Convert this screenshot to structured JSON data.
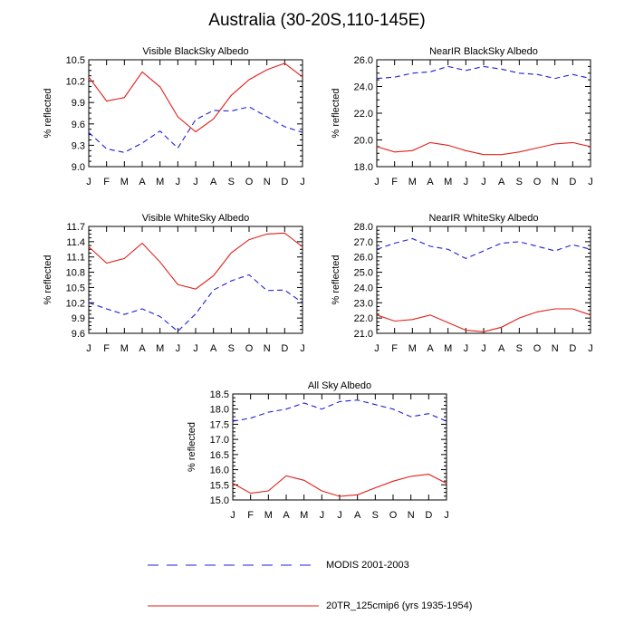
{
  "title": "Australia (30-20S,110-145E)",
  "colors": {
    "modis": "#1f1fd6",
    "model": "#e0201b"
  },
  "legend": [
    {
      "label": "MODIS 2001-2003",
      "style": "dashed",
      "color": "#1f1fd6"
    },
    {
      "label": "20TR_125cmip6 (yrs 1935-1954)",
      "style": "solid",
      "color": "#e0201b"
    }
  ],
  "chart_data": [
    {
      "type": "line",
      "title": "Visible BlackSky Albedo",
      "ylabel": "% reflected",
      "categories": [
        "J",
        "F",
        "M",
        "A",
        "M",
        "J",
        "J",
        "A",
        "S",
        "O",
        "N",
        "D",
        "J"
      ],
      "ylim": [
        9.0,
        10.5
      ],
      "yticks": [
        "9.0",
        "9.3",
        "9.6",
        "9.9",
        "10.2",
        "10.5"
      ],
      "series": [
        {
          "name": "MODIS 2001-2003",
          "style": "dashed",
          "values": [
            9.48,
            9.25,
            9.2,
            9.33,
            9.5,
            9.26,
            9.66,
            9.79,
            9.78,
            9.84,
            9.7,
            9.56,
            9.48
          ]
        },
        {
          "name": "20TR_125cmip6 (yrs 1935-1954)",
          "style": "solid",
          "values": [
            10.26,
            9.92,
            9.97,
            10.33,
            10.12,
            9.7,
            9.49,
            9.67,
            10.0,
            10.22,
            10.36,
            10.45,
            10.26
          ]
        }
      ]
    },
    {
      "type": "line",
      "title": "NearIR BlackSky Albedo",
      "ylabel": "% reflected",
      "categories": [
        "J",
        "F",
        "M",
        "A",
        "M",
        "J",
        "J",
        "A",
        "S",
        "O",
        "N",
        "D",
        "J"
      ],
      "ylim": [
        18.0,
        26.0
      ],
      "yticks": [
        "18.0",
        "20.0",
        "22.0",
        "24.0",
        "26.0"
      ],
      "series": [
        {
          "name": "MODIS 2001-2003",
          "style": "dashed",
          "values": [
            24.6,
            24.7,
            25.0,
            25.1,
            25.5,
            25.2,
            25.5,
            25.3,
            25.0,
            24.9,
            24.6,
            24.9,
            24.6
          ]
        },
        {
          "name": "20TR_125cmip6 (yrs 1935-1954)",
          "style": "solid",
          "values": [
            19.5,
            19.1,
            19.2,
            19.8,
            19.6,
            19.2,
            18.9,
            18.9,
            19.1,
            19.4,
            19.7,
            19.8,
            19.5
          ]
        }
      ]
    },
    {
      "type": "line",
      "title": "Visible WhiteSky Albedo",
      "ylabel": "% reflected",
      "categories": [
        "J",
        "F",
        "M",
        "A",
        "M",
        "J",
        "J",
        "A",
        "S",
        "O",
        "N",
        "D",
        "J"
      ],
      "ylim": [
        9.6,
        11.7
      ],
      "yticks": [
        "9.6",
        "9.9",
        "10.2",
        "10.5",
        "10.8",
        "11.1",
        "11.4",
        "11.7"
      ],
      "series": [
        {
          "name": "MODIS 2001-2003",
          "style": "dashed",
          "values": [
            10.2,
            10.08,
            9.97,
            10.08,
            9.93,
            9.64,
            9.98,
            10.45,
            10.63,
            10.75,
            10.44,
            10.45,
            10.2
          ]
        },
        {
          "name": "20TR_125cmip6 (yrs 1935-1954)",
          "style": "solid",
          "values": [
            11.3,
            10.98,
            11.07,
            11.37,
            11.0,
            10.56,
            10.47,
            10.73,
            11.18,
            11.44,
            11.55,
            11.57,
            11.3
          ]
        }
      ]
    },
    {
      "type": "line",
      "title": "NearIR WhiteSky Albedo",
      "ylabel": "% reflected",
      "categories": [
        "J",
        "F",
        "M",
        "A",
        "M",
        "J",
        "J",
        "A",
        "S",
        "O",
        "N",
        "D",
        "J"
      ],
      "ylim": [
        21.0,
        28.0
      ],
      "yticks": [
        "21.0",
        "22.0",
        "23.0",
        "24.0",
        "25.0",
        "26.0",
        "27.0",
        "28.0"
      ],
      "series": [
        {
          "name": "MODIS 2001-2003",
          "style": "dashed",
          "values": [
            26.5,
            26.9,
            27.2,
            26.7,
            26.5,
            25.9,
            26.4,
            26.9,
            27.0,
            26.7,
            26.4,
            26.8,
            26.5
          ]
        },
        {
          "name": "20TR_125cmip6 (yrs 1935-1954)",
          "style": "solid",
          "values": [
            22.2,
            21.8,
            21.9,
            22.2,
            21.7,
            21.2,
            21.1,
            21.4,
            22.0,
            22.4,
            22.6,
            22.6,
            22.2
          ]
        }
      ]
    },
    {
      "type": "line",
      "title": "All Sky Albedo",
      "ylabel": "% reflected",
      "categories": [
        "J",
        "F",
        "M",
        "A",
        "M",
        "J",
        "J",
        "A",
        "S",
        "O",
        "N",
        "D",
        "J"
      ],
      "ylim": [
        15.0,
        18.5
      ],
      "yticks": [
        "15.0",
        "15.5",
        "16.0",
        "16.5",
        "17.0",
        "17.5",
        "18.0",
        "18.5"
      ],
      "series": [
        {
          "name": "MODIS 2001-2003",
          "style": "dashed",
          "values": [
            17.6,
            17.7,
            17.9,
            18.0,
            18.2,
            18.0,
            18.25,
            18.3,
            18.15,
            18.0,
            17.75,
            17.85,
            17.6
          ]
        },
        {
          "name": "20TR_125cmip6 (yrs 1935-1954)",
          "style": "solid",
          "values": [
            15.55,
            15.22,
            15.3,
            15.8,
            15.65,
            15.3,
            15.12,
            15.17,
            15.4,
            15.62,
            15.78,
            15.85,
            15.55
          ]
        }
      ]
    }
  ]
}
